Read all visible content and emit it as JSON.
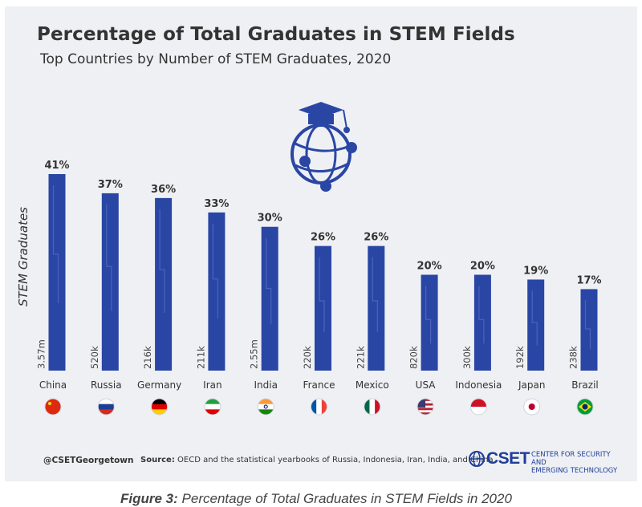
{
  "chart_data": {
    "type": "bar",
    "title": "Percentage of Total Graduates in STEM Fields",
    "subtitle": "Top Countries by Number of STEM Graduates, 2020",
    "ylabel": "STEM Graduates",
    "categories": [
      "China",
      "Russia",
      "Germany",
      "Iran",
      "India",
      "France",
      "Mexico",
      "USA",
      "Indonesia",
      "Japan",
      "Brazil"
    ],
    "values": [
      41,
      37,
      36,
      33,
      30,
      26,
      26,
      20,
      20,
      19,
      17
    ],
    "value_labels": [
      "41%",
      "37%",
      "36%",
      "33%",
      "30%",
      "26%",
      "26%",
      "20%",
      "20%",
      "19%",
      "17%"
    ],
    "graduate_counts": [
      "3.57m",
      "520k",
      "216k",
      "211k",
      "2.55m",
      "220k",
      "221k",
      "820k",
      "300k",
      "192k",
      "238k"
    ],
    "ylim": [
      0,
      41
    ],
    "bar_color": "#2a46a5",
    "flags": [
      "china-flag",
      "russia-flag",
      "germany-flag",
      "iran-flag",
      "india-flag",
      "france-flag",
      "mexico-flag",
      "usa-flag",
      "indonesia-flag",
      "japan-flag",
      "brazil-flag"
    ]
  },
  "footer": {
    "handle": "@CSETGeorgetown",
    "source_label": "Source:",
    "source_text": "OECD and the statistical yearbooks of Russia, Indonesia, Iran, India, and China"
  },
  "logo": {
    "name": "CSET",
    "tagline_1": "CENTER for SECURITY and",
    "tagline_2": "EMERGING TECHNOLOGY"
  },
  "caption": {
    "label": "Figure 3:",
    "text": "Percentage of Total Graduates in STEM Fields in 2020"
  },
  "colors": {
    "accent": "#2a46a5",
    "panel": "#eef0f3"
  }
}
